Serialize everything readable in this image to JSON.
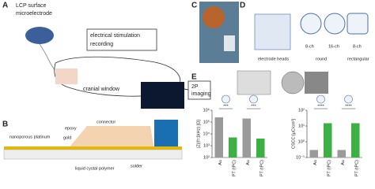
{
  "figure": {
    "A": {
      "label": "A",
      "title": [
        "LCP surface",
        "microelectrode"
      ],
      "box": [
        "electrical stimulation",
        "recording"
      ],
      "window": "cranial window",
      "imaging": [
        "2P",
        "imaging"
      ]
    },
    "B": {
      "label": "B",
      "epoxy": "epoxy",
      "connector": "connector",
      "platinum": "nanoporous platinum",
      "gold": "gold",
      "lcp": "liquid cystal polymer",
      "solder": "solder"
    },
    "C": {
      "label": "C"
    },
    "D": {
      "label": "D",
      "heads": "electrode heads",
      "ch8a": "8-ch",
      "ch16": "16-ch",
      "ch8b": "8-ch",
      "round": "round",
      "rect": "rectangular"
    },
    "E": {
      "label": "E"
    }
  },
  "chart_data": [
    {
      "type": "bar",
      "ylabel": "|Z|(f=1kHz) [Ω]",
      "log": true,
      "categories": [
        "Au",
        "PT (tPC)",
        "Au",
        "PT (tPC)"
      ],
      "values": [
        250000,
        5000,
        200000,
        4000
      ],
      "colors": [
        "#9a9a9a",
        "#3cb043",
        "#9a9a9a",
        "#3cb043"
      ],
      "annotations": [
        "***",
        "***"
      ],
      "ylim": [
        100,
        1000000
      ],
      "yticks": [
        {
          "value": 100,
          "label": "10²"
        },
        {
          "value": 1000,
          "label": "10³"
        },
        {
          "value": 10000,
          "label": "10⁴"
        },
        {
          "value": 100000,
          "label": "10⁵"
        },
        {
          "value": 1000000,
          "label": "10⁶"
        }
      ]
    },
    {
      "type": "bar",
      "ylabel": "CSCC [μC/cm²]",
      "log": true,
      "categories": [
        "Au",
        "PT (tPC)",
        "Au",
        "PT (tPC)"
      ],
      "values": [
        0.3,
        15,
        0.3,
        15
      ],
      "colors": [
        "#9a9a9a",
        "#3cb043",
        "#9a9a9a",
        "#3cb043"
      ],
      "annotations": [
        "****",
        "****"
      ],
      "ylim": [
        0.1,
        100
      ],
      "yticks": [
        {
          "value": 0.1,
          "label": "10⁻¹"
        },
        {
          "value": 1,
          "label": "10⁰"
        },
        {
          "value": 10,
          "label": "10¹"
        },
        {
          "value": 100,
          "label": "10²"
        }
      ]
    }
  ]
}
